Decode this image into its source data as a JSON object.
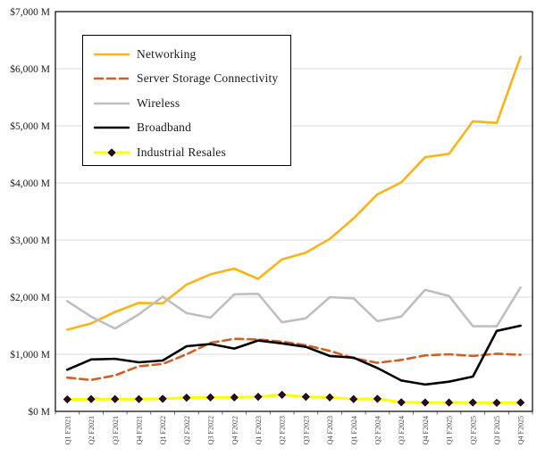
{
  "chart_data": {
    "type": "line",
    "title": "",
    "xlabel": "",
    "ylabel": "",
    "categories": [
      "Q1 F2021",
      "Q2 F2021",
      "Q3 F2021",
      "Q4 F2021",
      "Q1 F2022",
      "Q2 F2022",
      "Q3 F2022",
      "Q4 F2022",
      "Q1 F2023",
      "Q2 F2023",
      "Q3 F2023",
      "Q4 F2023",
      "Q1 F2024",
      "Q2 F2024",
      "Q3 F2024",
      "Q4 F2024",
      "Q1 F2025",
      "Q2 F2025",
      "Q3 F2025",
      "Q4 F2025"
    ],
    "series": [
      {
        "name": "Networking",
        "color": "#FAB419",
        "line_style": "solid",
        "line_width": 2.6,
        "values": [
          1430,
          1540,
          1740,
          1900,
          1890,
          2220,
          2400,
          2500,
          2320,
          2660,
          2780,
          3020,
          3380,
          3800,
          4010,
          4450,
          4510,
          5080,
          5050,
          6210
        ]
      },
      {
        "name": "Server Storage Connectivity",
        "color": "#CE6126",
        "line_style": "dashed",
        "line_width": 2.6,
        "values": [
          590,
          550,
          630,
          790,
          830,
          1000,
          1200,
          1270,
          1260,
          1220,
          1160,
          1060,
          930,
          850,
          900,
          980,
          1000,
          970,
          1010,
          990
        ]
      },
      {
        "name": "Wireless",
        "color": "#BFBFBF",
        "line_style": "solid",
        "line_width": 2.6,
        "values": [
          1930,
          1660,
          1450,
          1700,
          2010,
          1720,
          1640,
          2050,
          2060,
          1560,
          1630,
          2000,
          1980,
          1580,
          1660,
          2130,
          2020,
          1490,
          1490,
          2170
        ]
      },
      {
        "name": "Broadband",
        "color": "#000000",
        "line_style": "solid",
        "line_width": 2.6,
        "values": [
          730,
          910,
          920,
          860,
          890,
          1140,
          1180,
          1100,
          1240,
          1190,
          1130,
          970,
          940,
          760,
          540,
          470,
          520,
          610,
          1410,
          1500
        ]
      },
      {
        "name": "Industrial Resales",
        "color": "#FFFF00",
        "line_style": "solid",
        "line_width": 3,
        "marker": {
          "shape": "diamond",
          "fill": "#30092E",
          "stroke": "#000000",
          "size": 4
        },
        "values": [
          210,
          215,
          215,
          215,
          220,
          240,
          245,
          245,
          255,
          290,
          255,
          245,
          215,
          220,
          160,
          155,
          155,
          155,
          150,
          155
        ]
      }
    ],
    "y_axis": {
      "min": 0,
      "max": 7000,
      "step": 1000,
      "labels": [
        "$7,000 M",
        "$6,000 M",
        "$5,000 M",
        "$4,000 M",
        "$3,000 M",
        "$2,000 M",
        "$1,000 M",
        "$0 M"
      ]
    },
    "grid": true,
    "legend_position": "inside-top-left",
    "colors": {
      "gridline": "#D9D9D9",
      "plot_border": "#000000",
      "background": "#FFFFFF"
    }
  }
}
